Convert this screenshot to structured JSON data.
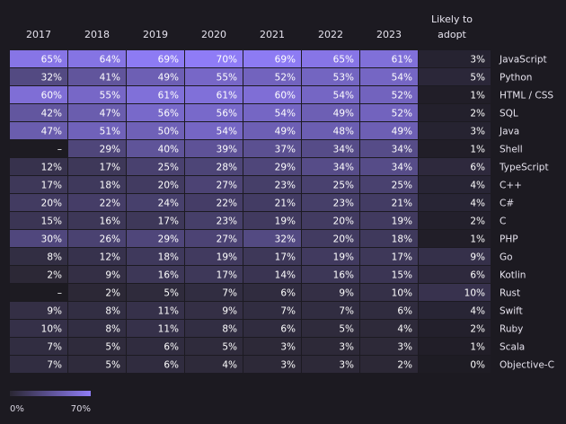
{
  "chart_data": {
    "type": "heatmap",
    "title": "",
    "columns": [
      "2017",
      "2018",
      "2019",
      "2020",
      "2021",
      "2022",
      "2023"
    ],
    "extra_column": [
      "Likely to",
      "adopt"
    ],
    "rows": [
      {
        "language": "JavaScript",
        "values": [
          "65%",
          "64%",
          "69%",
          "70%",
          "69%",
          "65%",
          "61%"
        ],
        "adopt": "3%"
      },
      {
        "language": "Python",
        "values": [
          "32%",
          "41%",
          "49%",
          "55%",
          "52%",
          "53%",
          "54%"
        ],
        "adopt": "5%"
      },
      {
        "language": "HTML / CSS",
        "values": [
          "60%",
          "55%",
          "61%",
          "61%",
          "60%",
          "54%",
          "52%"
        ],
        "adopt": "1%"
      },
      {
        "language": "SQL",
        "values": [
          "42%",
          "47%",
          "56%",
          "56%",
          "54%",
          "49%",
          "52%"
        ],
        "adopt": "2%"
      },
      {
        "language": "Java",
        "values": [
          "47%",
          "51%",
          "50%",
          "54%",
          "49%",
          "48%",
          "49%"
        ],
        "adopt": "3%"
      },
      {
        "language": "Shell",
        "values": [
          "–",
          "29%",
          "40%",
          "39%",
          "37%",
          "34%",
          "34%"
        ],
        "adopt": "1%"
      },
      {
        "language": "TypeScript",
        "values": [
          "12%",
          "17%",
          "25%",
          "28%",
          "29%",
          "34%",
          "34%"
        ],
        "adopt": "6%"
      },
      {
        "language": "C++",
        "values": [
          "17%",
          "18%",
          "20%",
          "27%",
          "23%",
          "25%",
          "25%"
        ],
        "adopt": "4%"
      },
      {
        "language": "C#",
        "values": [
          "20%",
          "22%",
          "24%",
          "22%",
          "21%",
          "23%",
          "21%"
        ],
        "adopt": "4%"
      },
      {
        "language": "C",
        "values": [
          "15%",
          "16%",
          "17%",
          "23%",
          "19%",
          "20%",
          "19%"
        ],
        "adopt": "2%"
      },
      {
        "language": "PHP",
        "values": [
          "30%",
          "26%",
          "29%",
          "27%",
          "32%",
          "20%",
          "18%"
        ],
        "adopt": "1%"
      },
      {
        "language": "Go",
        "values": [
          "8%",
          "12%",
          "18%",
          "19%",
          "17%",
          "19%",
          "17%"
        ],
        "adopt": "9%"
      },
      {
        "language": "Kotlin",
        "values": [
          "2%",
          "9%",
          "16%",
          "17%",
          "14%",
          "16%",
          "15%"
        ],
        "adopt": "6%"
      },
      {
        "language": "Rust",
        "values": [
          "–",
          "2%",
          "5%",
          "7%",
          "6%",
          "9%",
          "10%"
        ],
        "adopt": "10%"
      },
      {
        "language": "Swift",
        "values": [
          "9%",
          "8%",
          "11%",
          "9%",
          "7%",
          "7%",
          "6%"
        ],
        "adopt": "4%"
      },
      {
        "language": "Ruby",
        "values": [
          "10%",
          "8%",
          "11%",
          "8%",
          "6%",
          "5%",
          "4%"
        ],
        "adopt": "2%"
      },
      {
        "language": "Scala",
        "values": [
          "7%",
          "5%",
          "6%",
          "5%",
          "3%",
          "3%",
          "3%"
        ],
        "adopt": "1%"
      },
      {
        "language": "Objective-C",
        "values": [
          "7%",
          "5%",
          "6%",
          "4%",
          "3%",
          "3%",
          "2%"
        ],
        "adopt": "0%"
      }
    ],
    "scale": {
      "min": 0,
      "max": 70,
      "min_label": "0%",
      "max_label": "70%"
    },
    "colors": {
      "low": "#2a2733",
      "high": "#8f7cf6",
      "background": "#1c1a21"
    }
  }
}
